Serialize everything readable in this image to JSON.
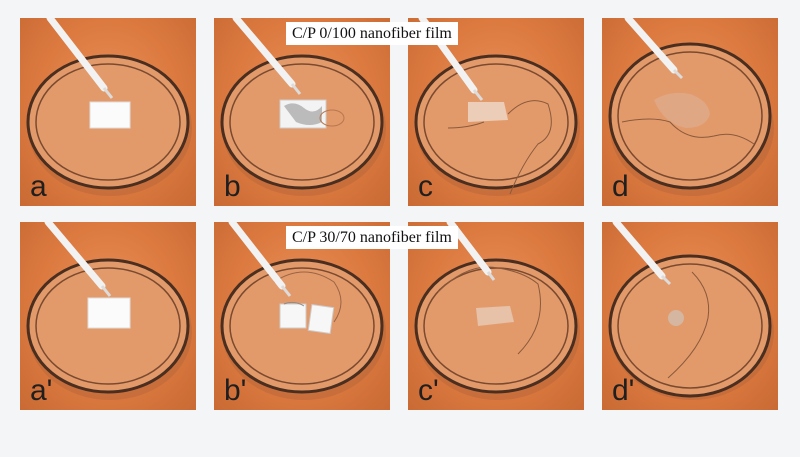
{
  "captions": {
    "top_row": "C/P 0/100 nanofiber film",
    "bottom_row": "C/P 30/70 nanofiber film"
  },
  "panels": {
    "a": "a",
    "b": "b",
    "c": "c",
    "d": "d",
    "a2": "a'",
    "b2": "b'",
    "c2": "c'",
    "d2": "d'"
  },
  "colors": {
    "background": "#dc7a40",
    "film": "#ffffff",
    "dish_rim": "#5b3a25"
  }
}
